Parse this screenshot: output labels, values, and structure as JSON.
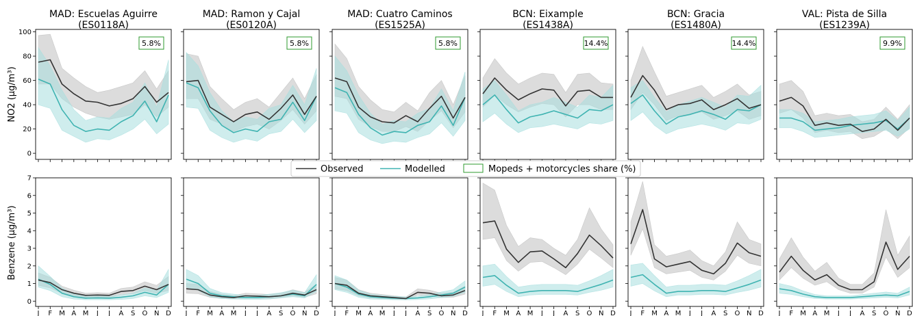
{
  "legend": {
    "observed": "Observed",
    "modelled": "Modelled",
    "share": "Mopeds + motorcycles share (%)"
  },
  "colors": {
    "observed": "#333333",
    "modelled": "#3fb3b1",
    "share_box": "#2e9a2e",
    "band_observed": "#bfbfbf",
    "band_modelled": "#a8dede"
  },
  "chart_data": {
    "type": "line",
    "months": [
      "J",
      "F",
      "M",
      "A",
      "M",
      "J",
      "J",
      "A",
      "S",
      "O",
      "N",
      "D"
    ],
    "rows": [
      {
        "ylabel": "NO2 (µg/m³)",
        "ylim": [
          -5,
          102
        ],
        "yticks": [
          "0",
          "20",
          "40",
          "60",
          "80",
          "100"
        ]
      },
      {
        "ylabel": "Benzene (µg/m³)",
        "ylim": [
          -0.3,
          7.0
        ],
        "yticks": [
          "0",
          "1",
          "2",
          "3",
          "4",
          "5",
          "6",
          "7"
        ]
      }
    ],
    "stations": [
      {
        "title": "MAD: Escuelas Aguirre\n(ES0118A)",
        "share": "5.8%",
        "no2": {
          "obs": [
            75,
            77,
            57,
            49,
            43,
            42,
            39,
            41,
            45,
            55,
            42,
            50
          ],
          "obs_lo": [
            57,
            57,
            45,
            38,
            33,
            30,
            28,
            30,
            32,
            40,
            30,
            38
          ],
          "obs_hi": [
            97,
            98,
            70,
            62,
            55,
            50,
            52,
            55,
            58,
            68,
            53,
            68
          ],
          "mod": [
            61,
            57,
            36,
            23,
            18,
            20,
            19,
            26,
            31,
            43,
            26,
            48
          ],
          "mod_lo": [
            40,
            37,
            19,
            14,
            9,
            12,
            11,
            15,
            20,
            28,
            16,
            24
          ],
          "mod_hi": [
            87,
            72,
            52,
            36,
            27,
            30,
            29,
            37,
            42,
            58,
            38,
            77
          ]
        },
        "benz": {
          "obs": [
            1.2,
            1.05,
            0.65,
            0.45,
            0.33,
            0.35,
            0.33,
            0.55,
            0.6,
            0.85,
            0.65,
            0.95
          ],
          "obs_lo": [
            0.9,
            0.75,
            0.45,
            0.3,
            0.2,
            0.22,
            0.2,
            0.38,
            0.42,
            0.6,
            0.45,
            0.6
          ],
          "obs_hi": [
            1.6,
            1.35,
            0.85,
            0.62,
            0.45,
            0.48,
            0.45,
            0.72,
            0.8,
            1.1,
            0.9,
            1.4
          ],
          "mod": [
            1.25,
            0.95,
            0.45,
            0.25,
            0.17,
            0.18,
            0.17,
            0.22,
            0.3,
            0.5,
            0.35,
            0.95
          ],
          "mod_lo": [
            0.8,
            0.6,
            0.25,
            0.12,
            0.08,
            0.08,
            0.08,
            0.1,
            0.15,
            0.3,
            0.2,
            0.5
          ],
          "mod_hi": [
            2.0,
            1.4,
            0.75,
            0.4,
            0.28,
            0.3,
            0.28,
            0.35,
            0.45,
            0.75,
            0.6,
            1.8
          ]
        }
      },
      {
        "title": "MAD: Ramon y Cajal\n(ES0120A)",
        "share": "5.8%",
        "no2": {
          "obs": [
            59,
            60,
            38,
            32,
            26,
            32,
            34,
            28,
            37,
            48,
            32,
            47
          ],
          "obs_lo": [
            45,
            45,
            28,
            24,
            18,
            22,
            24,
            20,
            27,
            36,
            24,
            35
          ],
          "obs_hi": [
            82,
            80,
            55,
            45,
            36,
            42,
            45,
            38,
            50,
            62,
            45,
            65
          ],
          "mod": [
            58,
            54,
            35,
            23,
            17,
            20,
            18,
            26,
            28,
            42,
            27,
            47
          ],
          "mod_lo": [
            38,
            37,
            19,
            13,
            9,
            12,
            10,
            16,
            18,
            28,
            17,
            27
          ],
          "mod_hi": [
            83,
            72,
            50,
            35,
            26,
            30,
            28,
            37,
            40,
            56,
            40,
            70
          ]
        },
        "benz": {
          "obs": [
            0.7,
            0.65,
            0.35,
            0.25,
            0.2,
            0.3,
            0.28,
            0.25,
            0.3,
            0.45,
            0.35,
            0.65
          ],
          "obs_lo": [
            0.45,
            0.42,
            0.22,
            0.15,
            0.12,
            0.18,
            0.17,
            0.15,
            0.2,
            0.3,
            0.22,
            0.42
          ],
          "obs_hi": [
            1.0,
            0.95,
            0.55,
            0.4,
            0.32,
            0.45,
            0.42,
            0.38,
            0.45,
            0.65,
            0.5,
            0.95
          ],
          "mod": [
            1.25,
            1.0,
            0.45,
            0.3,
            0.25,
            0.2,
            0.2,
            0.25,
            0.3,
            0.4,
            0.3,
            0.95
          ],
          "mod_lo": [
            0.8,
            0.62,
            0.25,
            0.15,
            0.12,
            0.1,
            0.1,
            0.12,
            0.18,
            0.25,
            0.18,
            0.55
          ],
          "mod_hi": [
            1.8,
            1.45,
            0.72,
            0.48,
            0.4,
            0.32,
            0.32,
            0.4,
            0.48,
            0.62,
            0.48,
            1.5
          ]
        }
      },
      {
        "title": "MAD: Cuatro Caminos\n(ES1525A)",
        "share": "5.8%",
        "no2": {
          "obs": [
            62,
            59,
            38,
            30,
            26,
            25,
            31,
            26,
            37,
            47,
            29,
            46
          ],
          "obs_lo": [
            47,
            45,
            28,
            22,
            18,
            18,
            22,
            18,
            27,
            35,
            21,
            34
          ],
          "obs_hi": [
            90,
            78,
            55,
            44,
            36,
            34,
            42,
            35,
            50,
            60,
            40,
            64
          ],
          "mod": [
            54,
            50,
            32,
            21,
            15,
            18,
            17,
            23,
            26,
            39,
            23,
            46
          ],
          "mod_lo": [
            35,
            33,
            17,
            11,
            8,
            10,
            9,
            13,
            16,
            25,
            14,
            27
          ],
          "mod_hi": [
            80,
            68,
            48,
            33,
            24,
            27,
            26,
            33,
            37,
            53,
            35,
            67
          ]
        },
        "benz": {
          "obs": [
            1.0,
            0.9,
            0.45,
            0.3,
            0.25,
            0.2,
            0.15,
            0.5,
            0.45,
            0.3,
            0.35,
            0.6
          ],
          "obs_lo": [
            0.7,
            0.6,
            0.3,
            0.18,
            0.15,
            0.12,
            0.08,
            0.35,
            0.3,
            0.2,
            0.22,
            0.4
          ],
          "obs_hi": [
            1.35,
            1.2,
            0.65,
            0.45,
            0.38,
            0.3,
            0.24,
            0.7,
            0.62,
            0.45,
            0.5,
            0.85
          ],
          "mod": [
            1.0,
            0.8,
            0.4,
            0.25,
            0.2,
            0.17,
            0.15,
            0.18,
            0.25,
            0.35,
            0.45,
            0.8
          ],
          "mod_lo": [
            0.65,
            0.5,
            0.22,
            0.12,
            0.1,
            0.08,
            0.07,
            0.09,
            0.13,
            0.2,
            0.28,
            0.5
          ],
          "mod_hi": [
            1.45,
            1.2,
            0.62,
            0.4,
            0.32,
            0.27,
            0.24,
            0.28,
            0.38,
            0.52,
            0.65,
            1.15
          ]
        }
      },
      {
        "title": "BCN: Eixample\n(ES1438A)",
        "share": "14.4%",
        "no2": {
          "obs": [
            49,
            62,
            52,
            44,
            49,
            53,
            52,
            39,
            51,
            52,
            46,
            46
          ],
          "obs_lo": [
            38,
            48,
            40,
            34,
            38,
            41,
            40,
            30,
            40,
            40,
            36,
            36
          ],
          "obs_hi": [
            62,
            78,
            66,
            57,
            62,
            66,
            65,
            50,
            65,
            66,
            58,
            57
          ],
          "mod": [
            40,
            48,
            36,
            25,
            30,
            32,
            35,
            32,
            29,
            36,
            35,
            40
          ],
          "mod_lo": [
            26,
            33,
            24,
            17,
            21,
            22,
            24,
            22,
            20,
            25,
            24,
            27
          ],
          "mod_hi": [
            53,
            60,
            48,
            35,
            40,
            42,
            46,
            42,
            38,
            48,
            46,
            56
          ]
        },
        "benz": {
          "obs": [
            4.45,
            4.55,
            2.95,
            2.2,
            2.8,
            2.85,
            2.4,
            1.9,
            2.7,
            3.75,
            3.15,
            2.45
          ],
          "obs_lo": [
            3.5,
            3.6,
            2.3,
            1.7,
            2.2,
            2.25,
            1.9,
            1.5,
            2.1,
            2.95,
            2.45,
            1.9
          ],
          "obs_hi": [
            6.7,
            6.3,
            4.3,
            3.1,
            3.6,
            3.5,
            3.0,
            2.6,
            3.5,
            5.3,
            4.1,
            3.2
          ],
          "mod": [
            1.35,
            1.45,
            0.9,
            0.45,
            0.55,
            0.6,
            0.6,
            0.6,
            0.55,
            0.75,
            0.95,
            1.2
          ],
          "mod_lo": [
            0.85,
            0.95,
            0.55,
            0.25,
            0.35,
            0.38,
            0.38,
            0.38,
            0.35,
            0.5,
            0.62,
            0.8
          ],
          "mod_hi": [
            2.0,
            2.1,
            1.4,
            0.8,
            0.9,
            0.95,
            0.95,
            0.95,
            0.9,
            1.15,
            1.45,
            1.8
          ]
        }
      },
      {
        "title": "BCN: Gracia\n(ES1480A)",
        "share": "14.4%",
        "no2": {
          "obs": [
            46,
            64,
            52,
            36,
            40,
            41,
            44,
            36,
            40,
            45,
            37,
            40
          ],
          "obs_lo": [
            36,
            50,
            40,
            27,
            31,
            32,
            34,
            28,
            31,
            35,
            28,
            31
          ],
          "obs_hi": [
            60,
            88,
            67,
            47,
            50,
            53,
            56,
            46,
            51,
            57,
            48,
            51
          ],
          "mod": [
            41,
            48,
            35,
            24,
            30,
            32,
            35,
            32,
            28,
            36,
            35,
            40
          ],
          "mod_lo": [
            27,
            34,
            23,
            16,
            20,
            22,
            24,
            22,
            19,
            25,
            24,
            28
          ],
          "mod_hi": [
            54,
            60,
            46,
            34,
            40,
            43,
            46,
            42,
            38,
            48,
            47,
            56
          ]
        },
        "benz": {
          "obs": [
            3.25,
            5.2,
            2.4,
            1.95,
            2.1,
            2.25,
            1.75,
            1.55,
            2.15,
            3.3,
            2.75,
            2.55
          ],
          "obs_lo": [
            2.6,
            4.1,
            1.9,
            1.55,
            1.65,
            1.75,
            1.35,
            1.2,
            1.7,
            2.6,
            2.15,
            2.0
          ],
          "obs_hi": [
            4.5,
            6.8,
            3.2,
            2.55,
            2.7,
            2.9,
            2.3,
            2.0,
            2.8,
            4.5,
            3.5,
            3.25
          ],
          "mod": [
            1.35,
            1.5,
            0.95,
            0.45,
            0.55,
            0.55,
            0.6,
            0.6,
            0.55,
            0.75,
            0.95,
            1.2
          ],
          "mod_lo": [
            0.85,
            1.0,
            0.58,
            0.25,
            0.35,
            0.35,
            0.38,
            0.38,
            0.35,
            0.5,
            0.62,
            0.8
          ],
          "mod_hi": [
            2.05,
            2.15,
            1.45,
            0.8,
            0.9,
            0.9,
            0.95,
            0.95,
            0.9,
            1.15,
            1.45,
            1.8
          ]
        }
      },
      {
        "title": "VAL: Pista de Silla\n(ES1239A)",
        "share": "9.9%",
        "no2": {
          "obs": [
            43,
            46,
            39,
            23,
            25,
            23,
            24,
            18,
            20,
            28,
            19,
            29
          ],
          "obs_lo": [
            33,
            36,
            29,
            17,
            19,
            17,
            18,
            12,
            14,
            20,
            12,
            21
          ],
          "obs_hi": [
            57,
            60,
            51,
            31,
            33,
            31,
            32,
            26,
            28,
            38,
            28,
            40
          ],
          "mod": [
            29,
            29,
            26,
            19,
            20,
            21,
            23,
            24,
            25,
            27,
            20,
            29
          ],
          "mod_lo": [
            21,
            21,
            18,
            13,
            14,
            15,
            16,
            17,
            18,
            19,
            14,
            20
          ],
          "mod_hi": [
            36,
            36,
            33,
            26,
            27,
            28,
            30,
            31,
            32,
            35,
            27,
            38
          ]
        },
        "benz": {
          "obs": [
            1.65,
            2.55,
            1.75,
            1.2,
            1.5,
            0.9,
            0.65,
            0.65,
            1.1,
            3.35,
            1.8,
            2.55
          ],
          "obs_lo": [
            1.2,
            1.9,
            1.3,
            0.9,
            1.1,
            0.65,
            0.45,
            0.45,
            0.8,
            2.5,
            1.35,
            1.9
          ],
          "obs_hi": [
            2.4,
            3.6,
            2.5,
            1.7,
            2.2,
            1.3,
            0.95,
            0.95,
            1.6,
            5.2,
            2.6,
            3.7
          ],
          "mod": [
            0.7,
            0.6,
            0.4,
            0.25,
            0.2,
            0.2,
            0.2,
            0.25,
            0.3,
            0.35,
            0.3,
            0.55
          ],
          "mod_lo": [
            0.45,
            0.38,
            0.25,
            0.15,
            0.12,
            0.12,
            0.12,
            0.15,
            0.18,
            0.22,
            0.18,
            0.35
          ],
          "mod_hi": [
            1.0,
            0.85,
            0.58,
            0.38,
            0.3,
            0.3,
            0.3,
            0.38,
            0.45,
            0.52,
            0.45,
            0.8
          ]
        }
      }
    ]
  }
}
